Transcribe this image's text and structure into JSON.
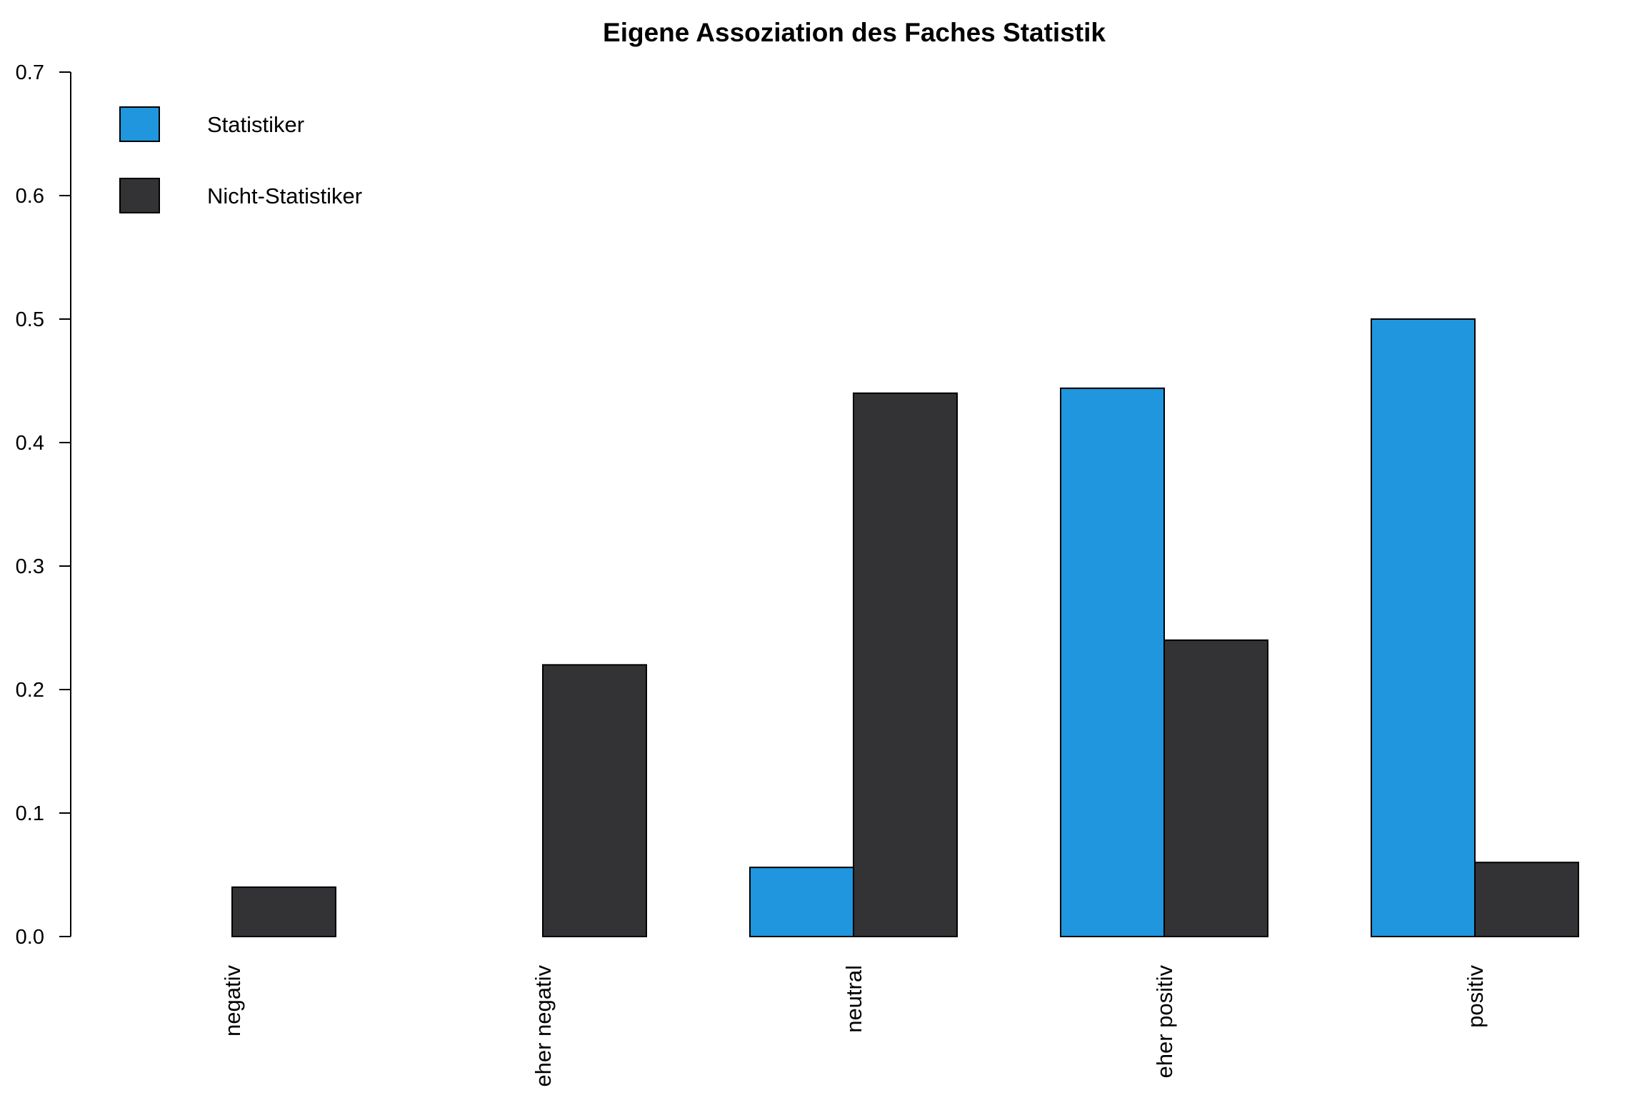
{
  "chart_data": {
    "type": "bar",
    "title": "Eigene Assoziation des Faches Statistik",
    "xlabel": "",
    "ylabel": "",
    "categories": [
      "negativ",
      "eher negativ",
      "neutral",
      "eher positiv",
      "positiv"
    ],
    "series": [
      {
        "name": "Statistiker",
        "color": "#1f96dd",
        "values": [
          0.0,
          0.0,
          0.056,
          0.444,
          0.5
        ]
      },
      {
        "name": "Nicht-Statistiker",
        "color": "#333335",
        "values": [
          0.04,
          0.22,
          0.44,
          0.24,
          0.06
        ]
      }
    ],
    "ylim": [
      0,
      0.7
    ],
    "yticks": [
      "0.0",
      "0.1",
      "0.2",
      "0.3",
      "0.4",
      "0.5",
      "0.6",
      "0.7"
    ],
    "grid": false,
    "legend_position": "top-left",
    "category_label_orientation": "vertical"
  }
}
